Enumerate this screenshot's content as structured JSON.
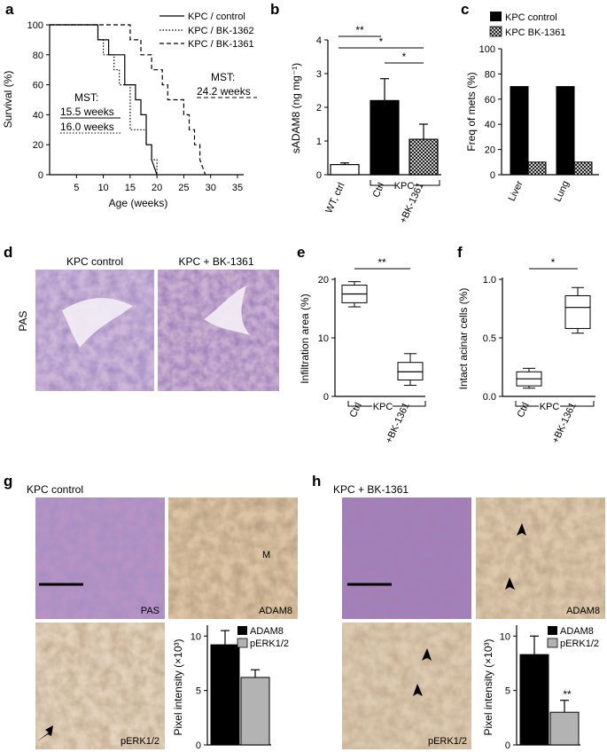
{
  "panel_letters": {
    "a": "a",
    "b": "b",
    "c": "c",
    "d": "d",
    "e": "e",
    "f": "f",
    "g": "g",
    "h": "h"
  },
  "panel_a": {
    "ylabel": "Survival (%)",
    "xlabel": "Age (weeks)",
    "xticks": [
      "5",
      "10",
      "15",
      "20",
      "25",
      "30",
      "35"
    ],
    "yticks": [
      "0",
      "20",
      "40",
      "60",
      "80",
      "100"
    ],
    "legend": [
      "KPC / control",
      "KPC / BK-1362",
      "KPC / BK-1361"
    ],
    "mst_left_title": "MST:",
    "mst_left_1": "15.5 weeks",
    "mst_left_2": "16.0 weeks",
    "mst_right_title": "MST:",
    "mst_right_1": "24.2 weeks"
  },
  "panel_b": {
    "ylabel": "sADAM8 (ng mg⁻¹)",
    "yticks": [
      "0",
      "1",
      "2",
      "3",
      "4"
    ],
    "xlabels": [
      "WT, ctrl",
      "Ctrl",
      "+BK-1361"
    ],
    "group_label": "KPC",
    "sig": [
      "**",
      "*",
      "*"
    ]
  },
  "panel_c": {
    "ylabel": "Freq of mets (%)",
    "yticks": [
      "0",
      "20",
      "40",
      "60",
      "80",
      "100"
    ],
    "xlabels": [
      "Liver",
      "Lung"
    ],
    "legend": [
      "KPC control",
      "KPC BK-1361"
    ]
  },
  "panel_d": {
    "left_title": "KPC control",
    "right_title": "KPC + BK-1361",
    "side_label": "PAS"
  },
  "panel_e": {
    "ylabel": "Infiltration area (%)",
    "yticks": [
      "0",
      "10",
      "20"
    ],
    "xlabels": [
      "Ctrl",
      "+BK-1361"
    ],
    "group_label": "KPC",
    "sig": "**"
  },
  "panel_f": {
    "ylabel": "Intact acinar cells (%)",
    "yticks": [
      "0.0",
      "0.5",
      "1.0"
    ],
    "xlabels": [
      "Ctrl",
      "+BK-1361"
    ],
    "group_label": "KPC",
    "sig": "*"
  },
  "panel_g": {
    "title": "KPC control",
    "img_labels": [
      "PAS",
      "ADAM8",
      "pERK1/2"
    ],
    "marker_m": "M",
    "ylabel": "Pixel intensity (×10³)",
    "yticks": [
      "0",
      "5",
      "10"
    ],
    "legend": [
      "ADAM8",
      "pERK1/2"
    ]
  },
  "panel_h": {
    "title": "KPC + BK-1361",
    "img_labels": [
      "ADAM8",
      "pERK1/2"
    ],
    "ylabel": "Pixel intensity (×10³)",
    "yticks": [
      "0",
      "5",
      "10"
    ],
    "legend": [
      "ADAM8",
      "pERK1/2"
    ],
    "sig": "**"
  },
  "colors": {
    "black": "#000000",
    "grey": "#b3b3b3",
    "tissue_purple": "#6b4f8f",
    "tissue_brown": "#c9a27a"
  },
  "chart_data": [
    {
      "panel": "a",
      "type": "line",
      "ylabel": "Survival (%)",
      "xlabel": "Age (weeks)",
      "xlim": [
        0,
        35
      ],
      "ylim": [
        0,
        100
      ],
      "series": [
        {
          "name": "KPC / control",
          "style": "solid",
          "x": [
            0,
            9,
            9,
            11,
            11,
            14,
            14,
            16,
            16,
            17,
            17,
            18,
            18,
            19,
            19,
            20
          ],
          "y": [
            100,
            100,
            90,
            90,
            80,
            80,
            60,
            60,
            50,
            50,
            40,
            40,
            20,
            20,
            10,
            0
          ]
        },
        {
          "name": "KPC / BK-1362",
          "style": "dotted",
          "x": [
            0,
            9,
            9,
            10,
            10,
            12,
            12,
            13,
            13,
            15,
            15,
            18,
            18,
            19,
            19,
            20,
            20
          ],
          "y": [
            100,
            100,
            90,
            90,
            80,
            80,
            70,
            70,
            60,
            60,
            30,
            30,
            20,
            20,
            10,
            10,
            0
          ]
        },
        {
          "name": "KPC / BK-1361",
          "style": "dashed",
          "x": [
            0,
            15,
            15,
            17,
            17,
            19,
            19,
            21,
            21,
            22,
            22,
            25,
            25,
            26,
            26,
            27,
            27,
            28,
            28,
            29
          ],
          "y": [
            100,
            100,
            90,
            90,
            80,
            80,
            70,
            70,
            60,
            60,
            50,
            50,
            40,
            40,
            30,
            30,
            20,
            20,
            10,
            0
          ]
        }
      ]
    },
    {
      "panel": "b",
      "type": "bar",
      "ylabel": "sADAM8 (ng mg⁻¹)",
      "ylim": [
        0,
        4
      ],
      "categories": [
        "WT, ctrl",
        "Ctrl",
        "+BK-1361"
      ],
      "values": [
        0.3,
        2.2,
        1.05
      ],
      "errors": [
        0.05,
        0.65,
        0.45
      ],
      "fills": [
        "white",
        "black",
        "hatched"
      ]
    },
    {
      "panel": "c",
      "type": "bar",
      "ylabel": "Freq of mets (%)",
      "ylim": [
        0,
        100
      ],
      "categories": [
        "Liver",
        "Lung"
      ],
      "series": [
        {
          "name": "KPC control",
          "values": [
            70,
            70
          ]
        },
        {
          "name": "KPC BK-1361",
          "values": [
            10,
            10
          ]
        }
      ]
    },
    {
      "panel": "e",
      "type": "box",
      "ylabel": "Infiltration area (%)",
      "ylim": [
        0,
        20
      ],
      "categories": [
        "Ctrl",
        "+BK-1361"
      ],
      "boxes": [
        {
          "min": 15.3,
          "q1": 16.0,
          "median": 17.5,
          "q3": 19.0,
          "max": 19.6
        },
        {
          "min": 1.9,
          "q1": 2.8,
          "median": 4.2,
          "q3": 5.8,
          "max": 7.3
        }
      ]
    },
    {
      "panel": "f",
      "type": "box",
      "ylabel": "Intact acinar cells (%)",
      "ylim": [
        0,
        1.0
      ],
      "categories": [
        "Ctrl",
        "+BK-1361"
      ],
      "boxes": [
        {
          "min": 0.07,
          "q1": 0.09,
          "median": 0.15,
          "q3": 0.21,
          "max": 0.24
        },
        {
          "min": 0.54,
          "q1": 0.58,
          "median": 0.76,
          "q3": 0.86,
          "max": 0.93
        }
      ]
    },
    {
      "panel": "g",
      "type": "bar",
      "ylabel": "Pixel intensity (×10³)",
      "ylim": [
        0,
        11
      ],
      "categories": [
        "ADAM8",
        "pERK1/2"
      ],
      "values": [
        9.2,
        6.2
      ],
      "errors": [
        1.3,
        0.7
      ]
    },
    {
      "panel": "h",
      "type": "bar",
      "ylabel": "Pixel intensity (×10³)",
      "ylim": [
        0,
        11
      ],
      "categories": [
        "ADAM8",
        "pERK1/2"
      ],
      "values": [
        8.3,
        3.0
      ],
      "errors": [
        1.7,
        1.1
      ]
    }
  ]
}
